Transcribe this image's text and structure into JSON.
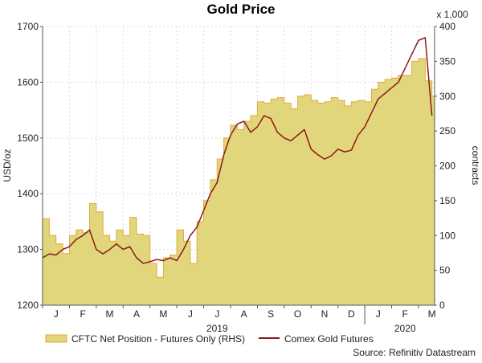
{
  "chart_data": {
    "type": "area",
    "title": "Gold Price",
    "left_axis": {
      "label": "USD/oz",
      "ylim": [
        1200,
        1700
      ],
      "ticks": [
        1200,
        1300,
        1400,
        1500,
        1600,
        1700
      ]
    },
    "right_axis": {
      "label": "contracts",
      "multiplier_label": "x 1,000",
      "ylim": [
        0,
        400
      ],
      "ticks": [
        0,
        50,
        100,
        150,
        200,
        250,
        300,
        350,
        400
      ]
    },
    "x_axis": {
      "month_labels": [
        "J",
        "F",
        "M",
        "A",
        "M",
        "J",
        "J",
        "A",
        "S",
        "O",
        "N",
        "D",
        "J",
        "F",
        "M"
      ],
      "year_labels": [
        {
          "label": "2019",
          "month_index": 6.5
        },
        {
          "label": "2020",
          "month_index": 13.5
        }
      ],
      "xlim": [
        0,
        14.6
      ]
    },
    "grid": true,
    "legend_position": "bottom",
    "series": [
      {
        "name": "CFTC Net Position - Futures Only (RHS)",
        "axis": "right",
        "style": "area",
        "color": "#e1d67c",
        "stroke": "#e6a93a",
        "x": [
          0,
          0.25,
          0.5,
          0.75,
          1.0,
          1.25,
          1.5,
          1.75,
          2.0,
          2.25,
          2.5,
          2.75,
          3.0,
          3.25,
          3.5,
          3.75,
          4.0,
          4.25,
          4.5,
          4.75,
          5.0,
          5.25,
          5.5,
          5.75,
          6.0,
          6.25,
          6.5,
          6.75,
          7.0,
          7.25,
          7.5,
          7.75,
          8.0,
          8.25,
          8.5,
          8.75,
          9.0,
          9.25,
          9.5,
          9.75,
          10.0,
          10.25,
          10.5,
          10.75,
          11.0,
          11.25,
          11.5,
          11.75,
          12.0,
          12.25,
          12.5,
          12.75,
          13.0,
          13.25,
          13.5,
          13.75,
          14.0,
          14.25,
          14.5
        ],
        "values": [
          124,
          100,
          88,
          74,
          100,
          108,
          104,
          146,
          134,
          100,
          92,
          108,
          100,
          126,
          102,
          100,
          60,
          40,
          68,
          72,
          108,
          92,
          60,
          120,
          150,
          180,
          210,
          240,
          258,
          252,
          264,
          272,
          292,
          290,
          296,
          298,
          290,
          282,
          300,
          302,
          294,
          290,
          292,
          298,
          294,
          286,
          292,
          294,
          292,
          310,
          320,
          324,
          326,
          330,
          330,
          350,
          354,
          322,
          300
        ]
      },
      {
        "name": "Comex Gold Futures",
        "axis": "left",
        "style": "line",
        "color": "#8b1a1a",
        "x": [
          0,
          0.25,
          0.5,
          0.75,
          1.0,
          1.25,
          1.5,
          1.75,
          2.0,
          2.25,
          2.5,
          2.75,
          3.0,
          3.25,
          3.5,
          3.75,
          4.0,
          4.25,
          4.5,
          4.75,
          5.0,
          5.25,
          5.5,
          5.75,
          6.0,
          6.25,
          6.5,
          6.75,
          7.0,
          7.25,
          7.5,
          7.75,
          8.0,
          8.25,
          8.5,
          8.75,
          9.0,
          9.25,
          9.5,
          9.75,
          10.0,
          10.25,
          10.5,
          10.75,
          11.0,
          11.25,
          11.5,
          11.75,
          12.0,
          12.25,
          12.5,
          12.75,
          13.0,
          13.25,
          13.5,
          13.75,
          14.0,
          14.25,
          14.5
        ],
        "values": [
          1285,
          1292,
          1290,
          1300,
          1305,
          1318,
          1325,
          1335,
          1300,
          1292,
          1300,
          1310,
          1300,
          1305,
          1285,
          1275,
          1278,
          1282,
          1280,
          1285,
          1280,
          1300,
          1325,
          1340,
          1370,
          1400,
          1420,
          1470,
          1505,
          1525,
          1530,
          1510,
          1520,
          1540,
          1535,
          1510,
          1500,
          1495,
          1505,
          1515,
          1480,
          1470,
          1462,
          1468,
          1480,
          1475,
          1478,
          1505,
          1520,
          1545,
          1570,
          1580,
          1590,
          1600,
          1625,
          1650,
          1675,
          1680,
          1540
        ]
      }
    ]
  },
  "source_label": "Source: Refinitiv Datastream"
}
